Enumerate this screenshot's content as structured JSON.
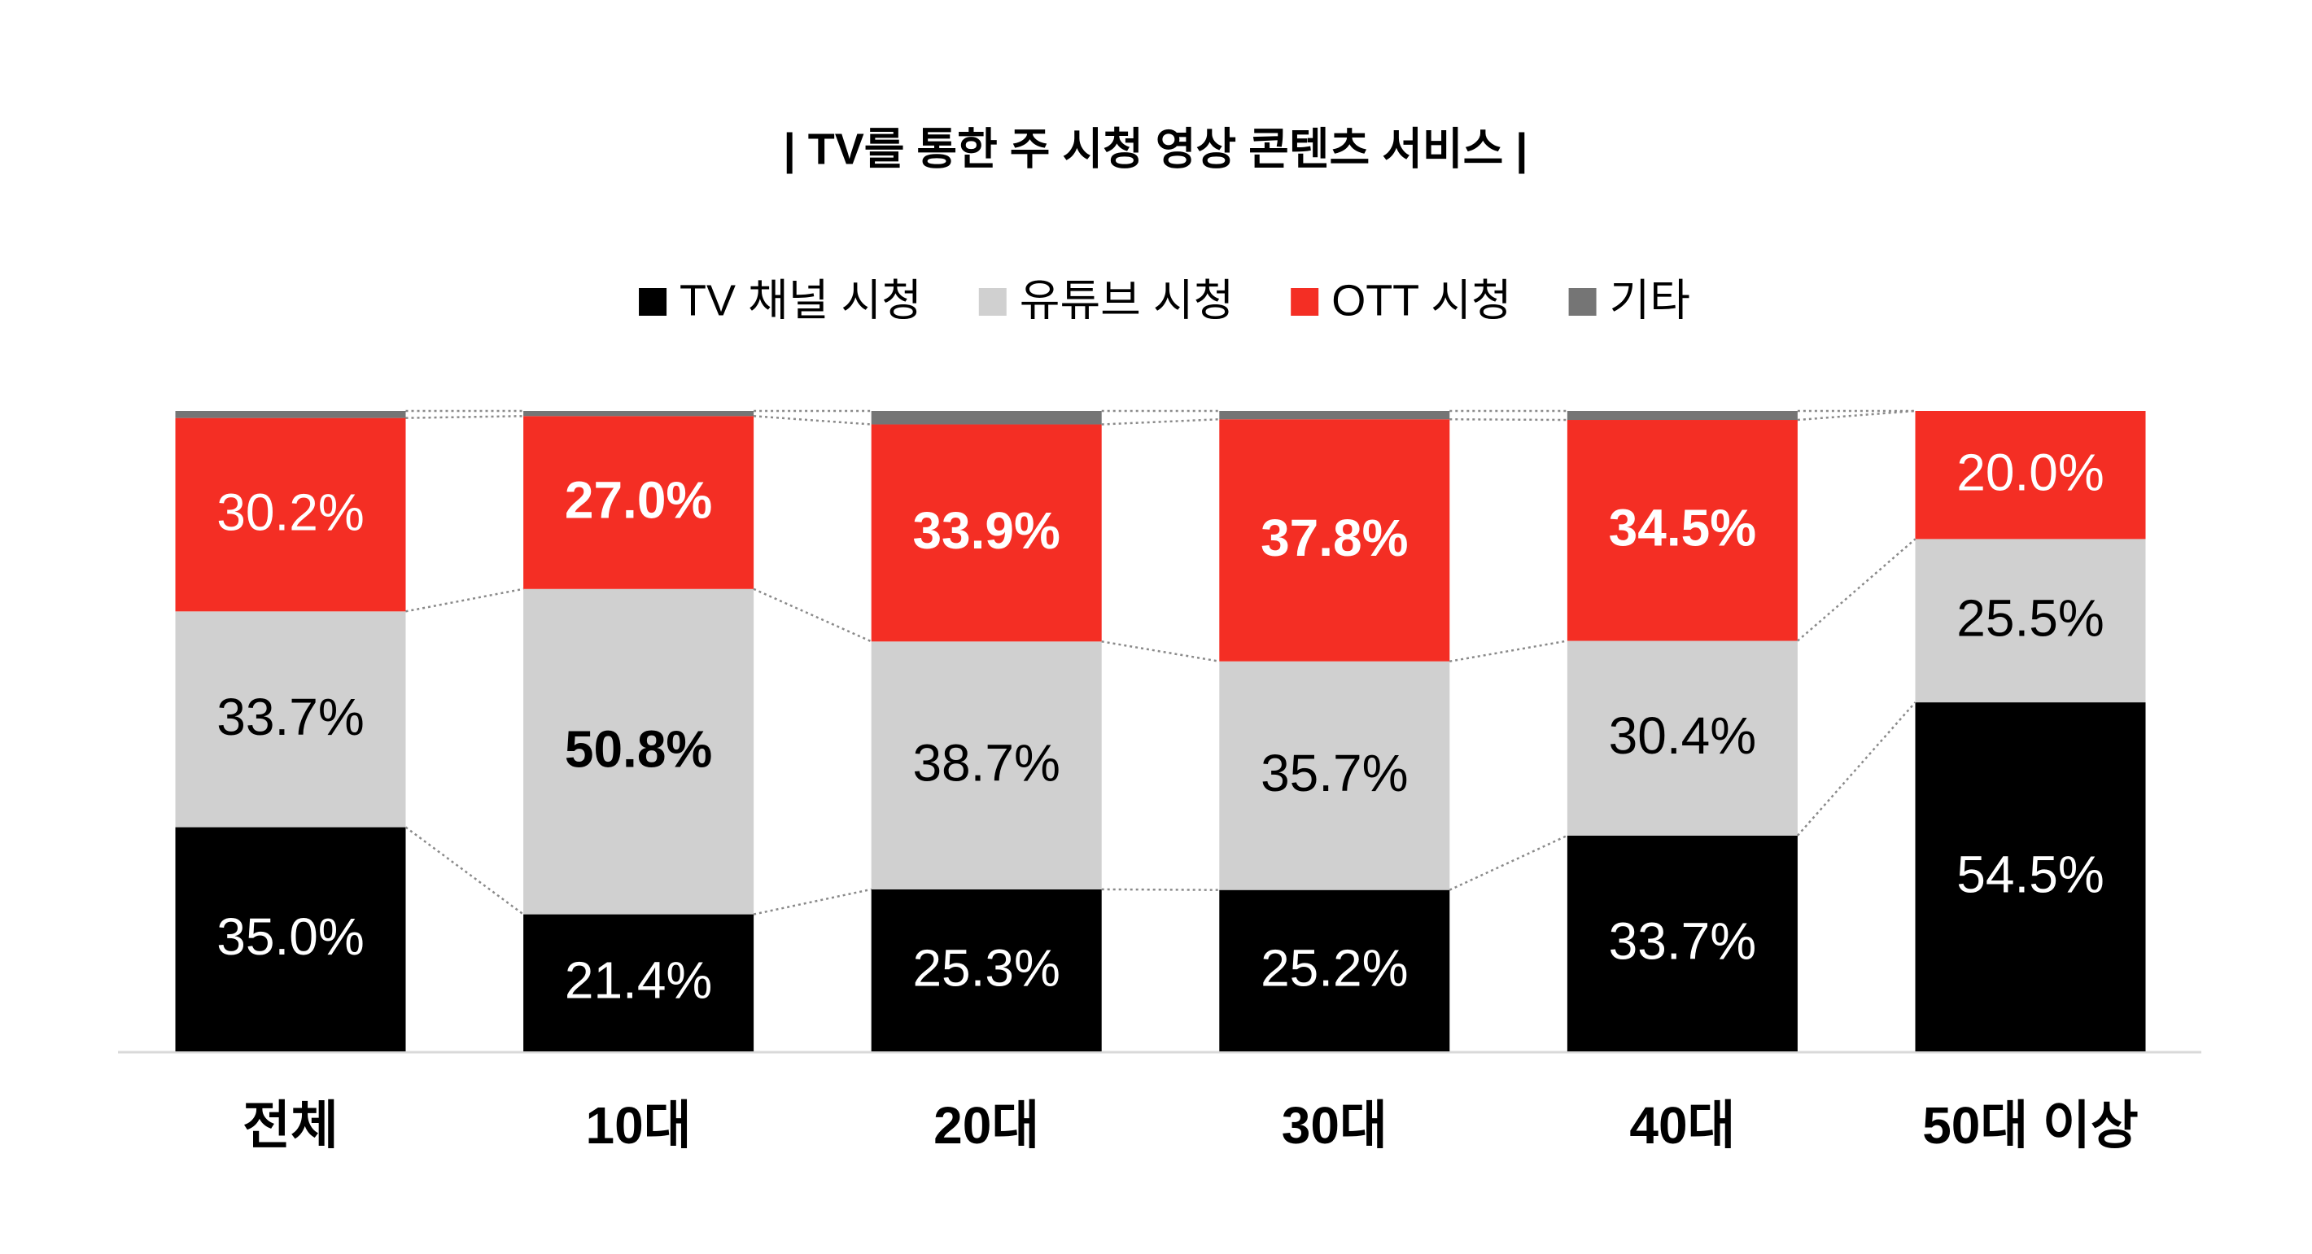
{
  "chart_data": {
    "type": "stacked_bar",
    "title": "| TV를 통한 주 시청 영상 콘텐츠 서비스 |",
    "categories": [
      "전체",
      "10대",
      "20대",
      "30대",
      "40대",
      "50대 이상"
    ],
    "series": [
      {
        "name": "TV 채널 시청",
        "color": "#000000",
        "label_color": "#ffffff",
        "values": [
          35.0,
          21.4,
          25.3,
          25.2,
          33.7,
          54.5
        ],
        "value_labels": [
          "35.0%",
          "21.4%",
          "25.3%",
          "25.2%",
          "33.7%",
          "54.5%"
        ],
        "bold": [
          false,
          false,
          false,
          false,
          false,
          false
        ]
      },
      {
        "name": "유튜브 시청",
        "color": "#d0d0d0",
        "label_color": "#000000",
        "values": [
          33.7,
          50.8,
          38.7,
          35.7,
          30.4,
          25.5
        ],
        "value_labels": [
          "33.7%",
          "50.8%",
          "38.7%",
          "35.7%",
          "30.4%",
          "25.5%"
        ],
        "bold": [
          false,
          true,
          false,
          false,
          false,
          false
        ]
      },
      {
        "name": "OTT 시청",
        "color": "#f42e24",
        "label_color": "#ffffff",
        "values": [
          30.2,
          27.0,
          33.9,
          37.8,
          34.5,
          20.0
        ],
        "value_labels": [
          "30.2%",
          "27.0%",
          "33.9%",
          "37.8%",
          "34.5%",
          "20.0%"
        ],
        "bold": [
          false,
          true,
          true,
          true,
          true,
          false
        ]
      },
      {
        "name": "기타",
        "color": "#757575",
        "values": [
          1.1,
          0.8,
          2.1,
          1.3,
          1.4,
          0
        ]
      }
    ],
    "ylim": [
      0,
      100
    ],
    "connectors": true
  }
}
